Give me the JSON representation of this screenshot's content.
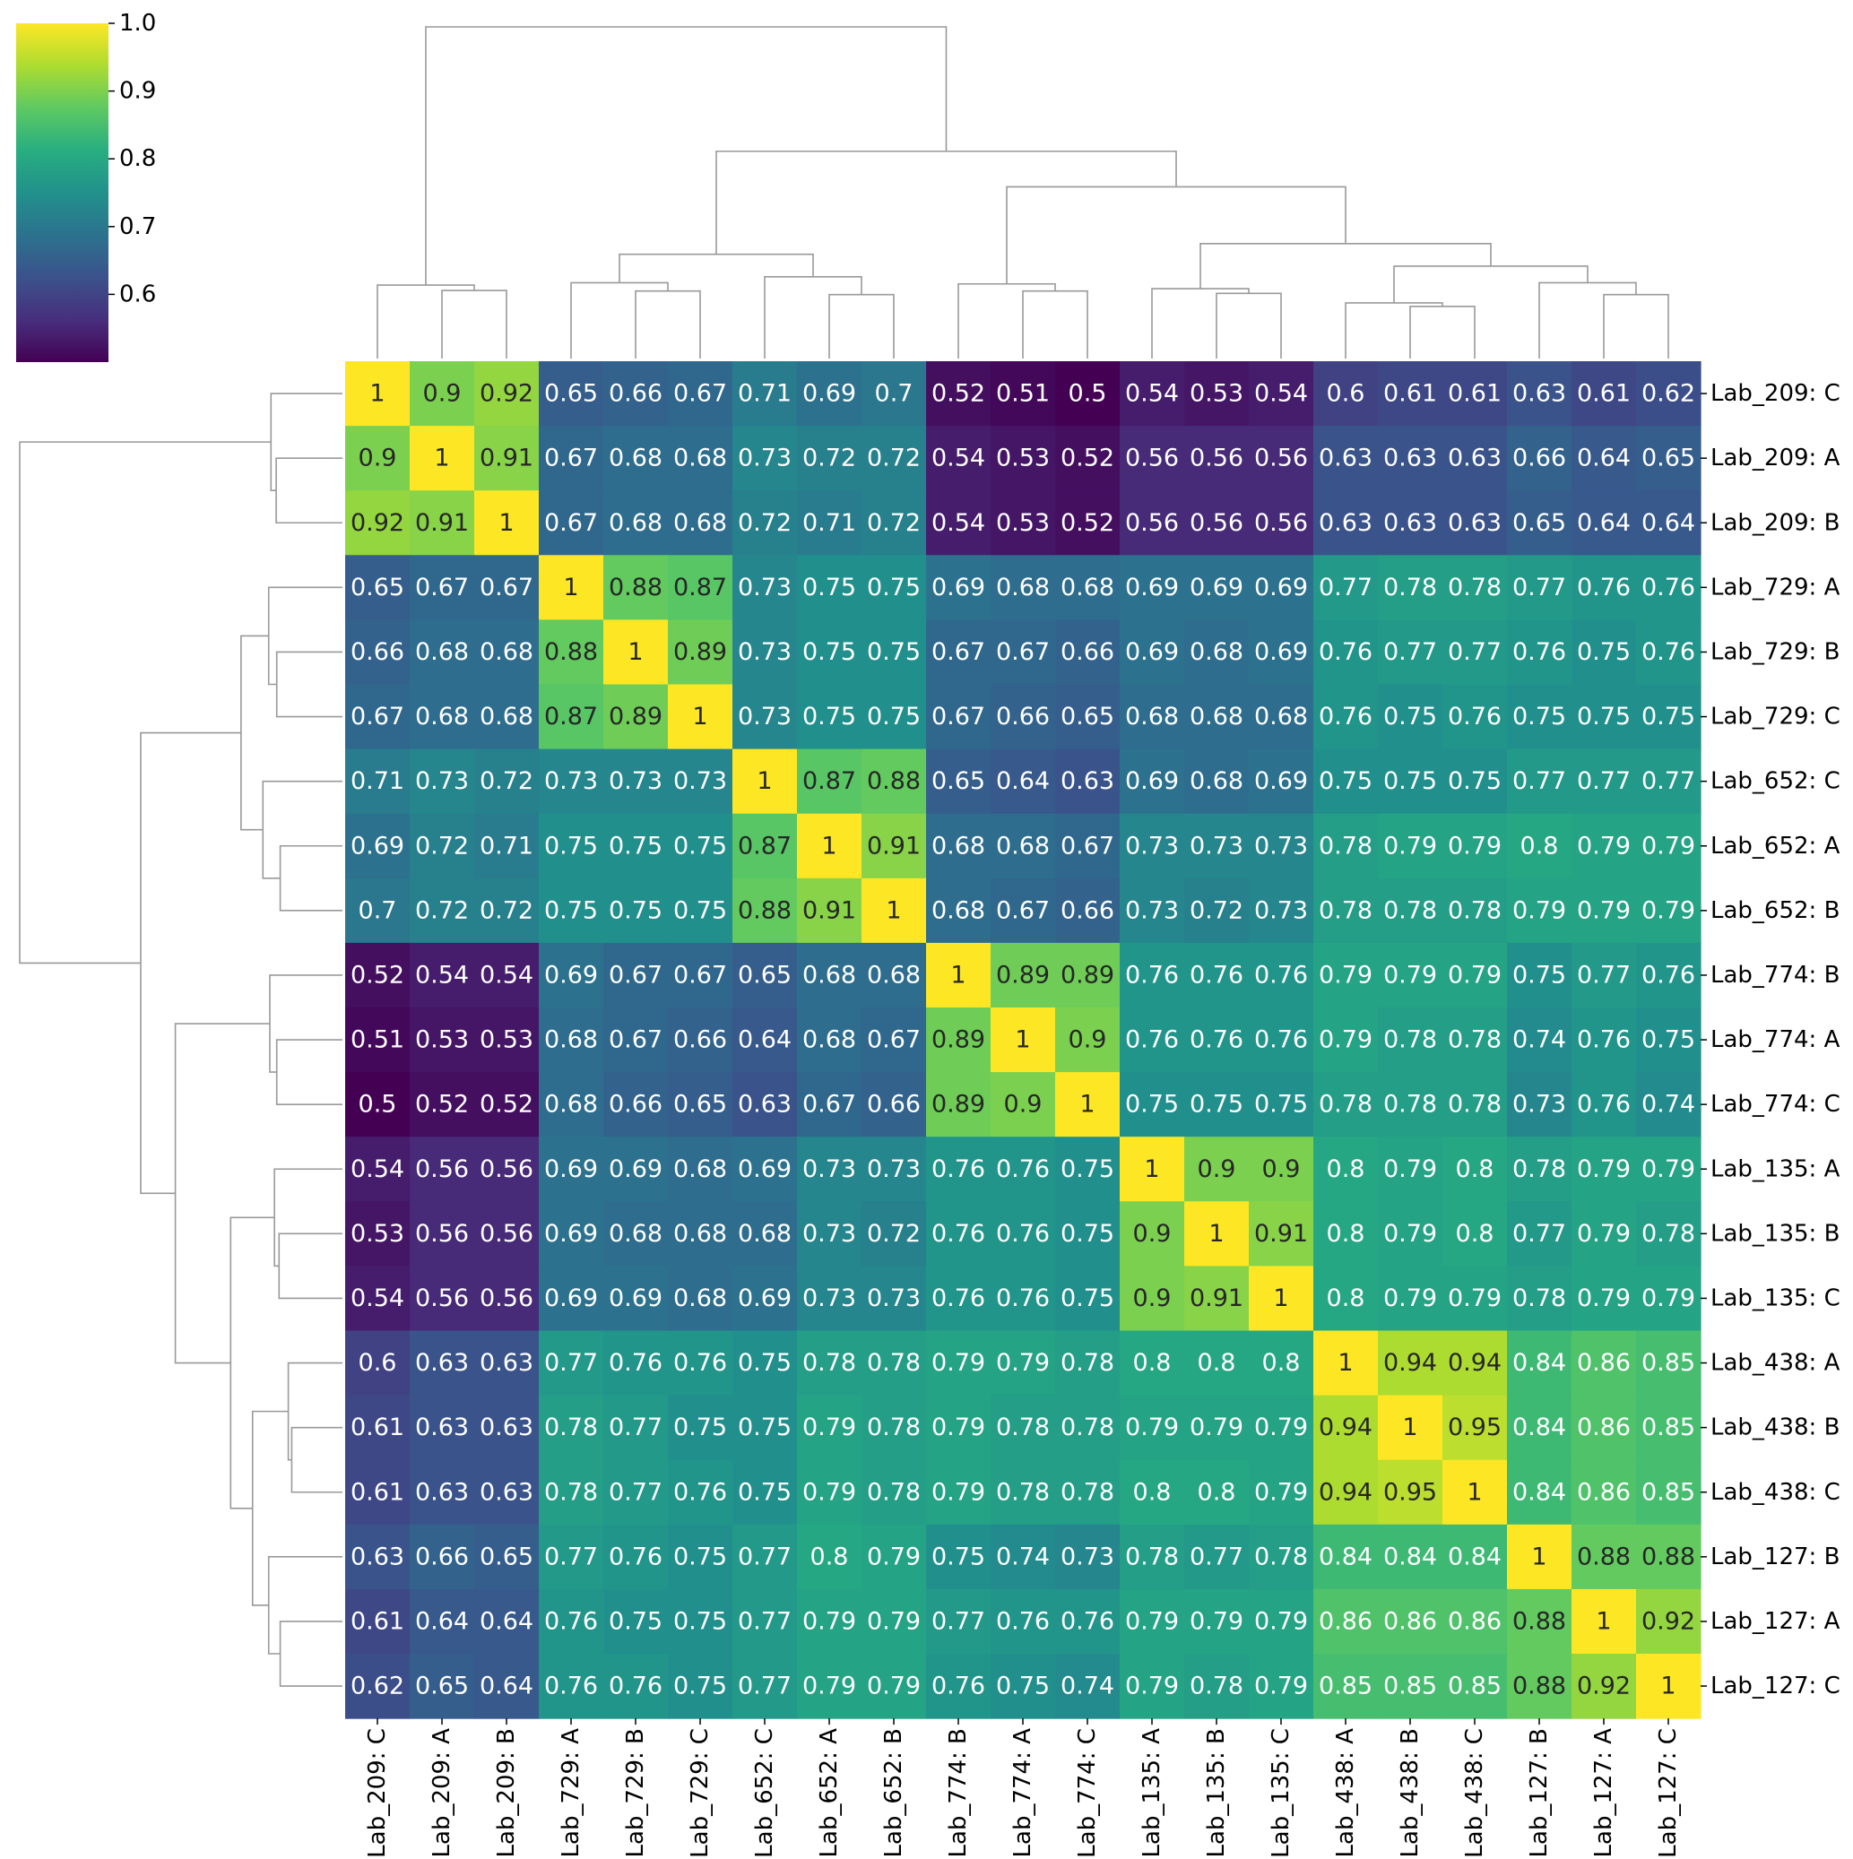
{
  "chart_data": {
    "type": "heatmap",
    "colormap": "viridis",
    "colorbar": {
      "min": 0.5,
      "max": 1.0,
      "ticks": [
        "0.6",
        "0.7",
        "0.8",
        "0.9",
        "1.0"
      ],
      "tick_values": [
        0.6,
        0.7,
        0.8,
        0.9,
        1.0
      ]
    },
    "row_labels": [
      "Lab_209: C",
      "Lab_209: A",
      "Lab_209: B",
      "Lab_729: A",
      "Lab_729: B",
      "Lab_729: C",
      "Lab_652: C",
      "Lab_652: A",
      "Lab_652: B",
      "Lab_774: B",
      "Lab_774: A",
      "Lab_774: C",
      "Lab_135: A",
      "Lab_135: B",
      "Lab_135: C",
      "Lab_438: A",
      "Lab_438: B",
      "Lab_438: C",
      "Lab_127: B",
      "Lab_127: A",
      "Lab_127: C"
    ],
    "col_labels": [
      "Lab_209: C",
      "Lab_209: A",
      "Lab_209: B",
      "Lab_729: A",
      "Lab_729: B",
      "Lab_729: C",
      "Lab_652: C",
      "Lab_652: A",
      "Lab_652: B",
      "Lab_774: B",
      "Lab_774: A",
      "Lab_774: C",
      "Lab_135: A",
      "Lab_135: B",
      "Lab_135: C",
      "Lab_438: A",
      "Lab_438: B",
      "Lab_438: C",
      "Lab_127: B",
      "Lab_127: A",
      "Lab_127: C"
    ],
    "values": [
      [
        1,
        0.9,
        0.92,
        0.65,
        0.66,
        0.67,
        0.71,
        0.69,
        0.7,
        0.52,
        0.51,
        0.5,
        0.54,
        0.53,
        0.54,
        0.6,
        0.61,
        0.61,
        0.63,
        0.61,
        0.62
      ],
      [
        0.9,
        1,
        0.91,
        0.67,
        0.68,
        0.68,
        0.73,
        0.72,
        0.72,
        0.54,
        0.53,
        0.52,
        0.56,
        0.56,
        0.56,
        0.63,
        0.63,
        0.63,
        0.66,
        0.64,
        0.65
      ],
      [
        0.92,
        0.91,
        1,
        0.67,
        0.68,
        0.68,
        0.72,
        0.71,
        0.72,
        0.54,
        0.53,
        0.52,
        0.56,
        0.56,
        0.56,
        0.63,
        0.63,
        0.63,
        0.65,
        0.64,
        0.64
      ],
      [
        0.65,
        0.67,
        0.67,
        1,
        0.88,
        0.87,
        0.73,
        0.75,
        0.75,
        0.69,
        0.68,
        0.68,
        0.69,
        0.69,
        0.69,
        0.77,
        0.78,
        0.78,
        0.77,
        0.76,
        0.76
      ],
      [
        0.66,
        0.68,
        0.68,
        0.88,
        1,
        0.89,
        0.73,
        0.75,
        0.75,
        0.67,
        0.67,
        0.66,
        0.69,
        0.68,
        0.69,
        0.76,
        0.77,
        0.77,
        0.76,
        0.75,
        0.76
      ],
      [
        0.67,
        0.68,
        0.68,
        0.87,
        0.89,
        1,
        0.73,
        0.75,
        0.75,
        0.67,
        0.66,
        0.65,
        0.68,
        0.68,
        0.68,
        0.76,
        0.75,
        0.76,
        0.75,
        0.75,
        0.75
      ],
      [
        0.71,
        0.73,
        0.72,
        0.73,
        0.73,
        0.73,
        1,
        0.87,
        0.88,
        0.65,
        0.64,
        0.63,
        0.69,
        0.68,
        0.69,
        0.75,
        0.75,
        0.75,
        0.77,
        0.77,
        0.77
      ],
      [
        0.69,
        0.72,
        0.71,
        0.75,
        0.75,
        0.75,
        0.87,
        1,
        0.91,
        0.68,
        0.68,
        0.67,
        0.73,
        0.73,
        0.73,
        0.78,
        0.79,
        0.79,
        0.8,
        0.79,
        0.79
      ],
      [
        0.7,
        0.72,
        0.72,
        0.75,
        0.75,
        0.75,
        0.88,
        0.91,
        1,
        0.68,
        0.67,
        0.66,
        0.73,
        0.72,
        0.73,
        0.78,
        0.78,
        0.78,
        0.79,
        0.79,
        0.79
      ],
      [
        0.52,
        0.54,
        0.54,
        0.69,
        0.67,
        0.67,
        0.65,
        0.68,
        0.68,
        1,
        0.89,
        0.89,
        0.76,
        0.76,
        0.76,
        0.79,
        0.79,
        0.79,
        0.75,
        0.77,
        0.76
      ],
      [
        0.51,
        0.53,
        0.53,
        0.68,
        0.67,
        0.66,
        0.64,
        0.68,
        0.67,
        0.89,
        1,
        0.9,
        0.76,
        0.76,
        0.76,
        0.79,
        0.78,
        0.78,
        0.74,
        0.76,
        0.75
      ],
      [
        0.5,
        0.52,
        0.52,
        0.68,
        0.66,
        0.65,
        0.63,
        0.67,
        0.66,
        0.89,
        0.9,
        1,
        0.75,
        0.75,
        0.75,
        0.78,
        0.78,
        0.78,
        0.73,
        0.76,
        0.74
      ],
      [
        0.54,
        0.56,
        0.56,
        0.69,
        0.69,
        0.68,
        0.69,
        0.73,
        0.73,
        0.76,
        0.76,
        0.75,
        1,
        0.9,
        0.9,
        0.8,
        0.79,
        0.8,
        0.78,
        0.79,
        0.79
      ],
      [
        0.53,
        0.56,
        0.56,
        0.69,
        0.68,
        0.68,
        0.68,
        0.73,
        0.72,
        0.76,
        0.76,
        0.75,
        0.9,
        1,
        0.91,
        0.8,
        0.79,
        0.8,
        0.77,
        0.79,
        0.78
      ],
      [
        0.54,
        0.56,
        0.56,
        0.69,
        0.69,
        0.68,
        0.69,
        0.73,
        0.73,
        0.76,
        0.76,
        0.75,
        0.9,
        0.91,
        1,
        0.8,
        0.79,
        0.79,
        0.78,
        0.79,
        0.79
      ],
      [
        0.6,
        0.63,
        0.63,
        0.77,
        0.76,
        0.76,
        0.75,
        0.78,
        0.78,
        0.79,
        0.79,
        0.78,
        0.8,
        0.8,
        0.8,
        1,
        0.94,
        0.94,
        0.84,
        0.86,
        0.85
      ],
      [
        0.61,
        0.63,
        0.63,
        0.78,
        0.77,
        0.75,
        0.75,
        0.79,
        0.78,
        0.79,
        0.78,
        0.78,
        0.79,
        0.79,
        0.79,
        0.94,
        1,
        0.95,
        0.84,
        0.86,
        0.85
      ],
      [
        0.61,
        0.63,
        0.63,
        0.78,
        0.77,
        0.76,
        0.75,
        0.79,
        0.78,
        0.79,
        0.78,
        0.78,
        0.8,
        0.8,
        0.79,
        0.94,
        0.95,
        1,
        0.84,
        0.86,
        0.85
      ],
      [
        0.63,
        0.66,
        0.65,
        0.77,
        0.76,
        0.75,
        0.77,
        0.8,
        0.79,
        0.75,
        0.74,
        0.73,
        0.78,
        0.77,
        0.78,
        0.84,
        0.84,
        0.84,
        1,
        0.88,
        0.88
      ],
      [
        0.61,
        0.64,
        0.64,
        0.76,
        0.75,
        0.75,
        0.77,
        0.79,
        0.79,
        0.77,
        0.76,
        0.76,
        0.79,
        0.79,
        0.79,
        0.86,
        0.86,
        0.86,
        0.88,
        1,
        0.92
      ],
      [
        0.62,
        0.65,
        0.64,
        0.76,
        0.76,
        0.75,
        0.77,
        0.79,
        0.79,
        0.76,
        0.75,
        0.74,
        0.79,
        0.78,
        0.79,
        0.85,
        0.85,
        0.85,
        0.88,
        0.92,
        1
      ]
    ],
    "dendrogram_merges": [
      [
        1,
        2,
        0.575
      ],
      [
        0,
        21,
        0.62
      ],
      [
        4,
        5,
        0.57
      ],
      [
        3,
        23,
        0.64
      ],
      [
        7,
        8,
        0.54
      ],
      [
        6,
        25,
        0.69
      ],
      [
        24,
        26,
        0.88
      ],
      [
        10,
        11,
        0.57
      ],
      [
        9,
        28,
        0.63
      ],
      [
        13,
        14,
        0.55
      ],
      [
        12,
        30,
        0.59
      ],
      [
        16,
        17,
        0.44
      ],
      [
        15,
        32,
        0.47
      ],
      [
        19,
        20,
        0.54
      ],
      [
        18,
        34,
        0.64
      ],
      [
        33,
        35,
        0.78
      ],
      [
        31,
        36,
        0.97
      ],
      [
        29,
        37,
        1.45
      ],
      [
        27,
        38,
        1.75
      ],
      [
        22,
        39,
        2.8
      ]
    ]
  }
}
